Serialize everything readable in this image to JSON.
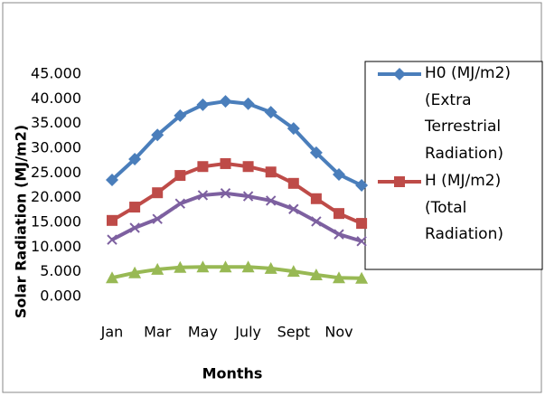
{
  "chart_data": {
    "type": "line",
    "x_label": "Months",
    "y_label": "Solar Radiation (MJ/m2)",
    "categories": [
      "Jan",
      null,
      "Mar",
      null,
      "May",
      null,
      "July",
      null,
      "Sept",
      null,
      "Nov",
      null
    ],
    "ylim": [
      0,
      45
    ],
    "yticks": [
      {
        "value": 0,
        "label": "0.000"
      },
      {
        "value": 5,
        "label": "5.000"
      },
      {
        "value": 10,
        "label": "10.000"
      },
      {
        "value": 15,
        "label": "15.000"
      },
      {
        "value": 20,
        "label": "20.000"
      },
      {
        "value": 25,
        "label": "25.000"
      },
      {
        "value": 30,
        "label": "30.000"
      },
      {
        "value": 35,
        "label": "35.000"
      },
      {
        "value": 40,
        "label": "40.000"
      },
      {
        "value": 45,
        "label": "45.000"
      }
    ],
    "grid": false,
    "legend": "right",
    "series": [
      {
        "name": "H0 (MJ/m2) (Extra Terrestrial Radiation)",
        "color": "#4a7ebb",
        "marker": "diamond",
        "values": [
          23.6,
          27.8,
          32.7,
          36.6,
          38.8,
          39.5,
          39.0,
          37.3,
          34.0,
          29.1,
          24.7,
          22.5
        ]
      },
      {
        "name": "H  (MJ/m2) (Total Radiation)",
        "color": "#be4b48",
        "marker": "square",
        "values": [
          15.4,
          18.1,
          21.0,
          24.5,
          26.3,
          26.9,
          26.3,
          25.2,
          22.9,
          19.8,
          16.8,
          14.8
        ]
      },
      {
        "color": "#7d60a0",
        "marker": "x",
        "values": [
          11.5,
          13.9,
          15.7,
          18.8,
          20.5,
          20.9,
          20.3,
          19.4,
          17.7,
          15.2,
          12.6,
          11.2
        ]
      },
      {
        "color": "#98b954",
        "marker": "triangle",
        "values": [
          3.8,
          4.8,
          5.5,
          5.9,
          6.0,
          6.0,
          6.0,
          5.7,
          5.1,
          4.4,
          3.8,
          3.7
        ]
      }
    ]
  }
}
